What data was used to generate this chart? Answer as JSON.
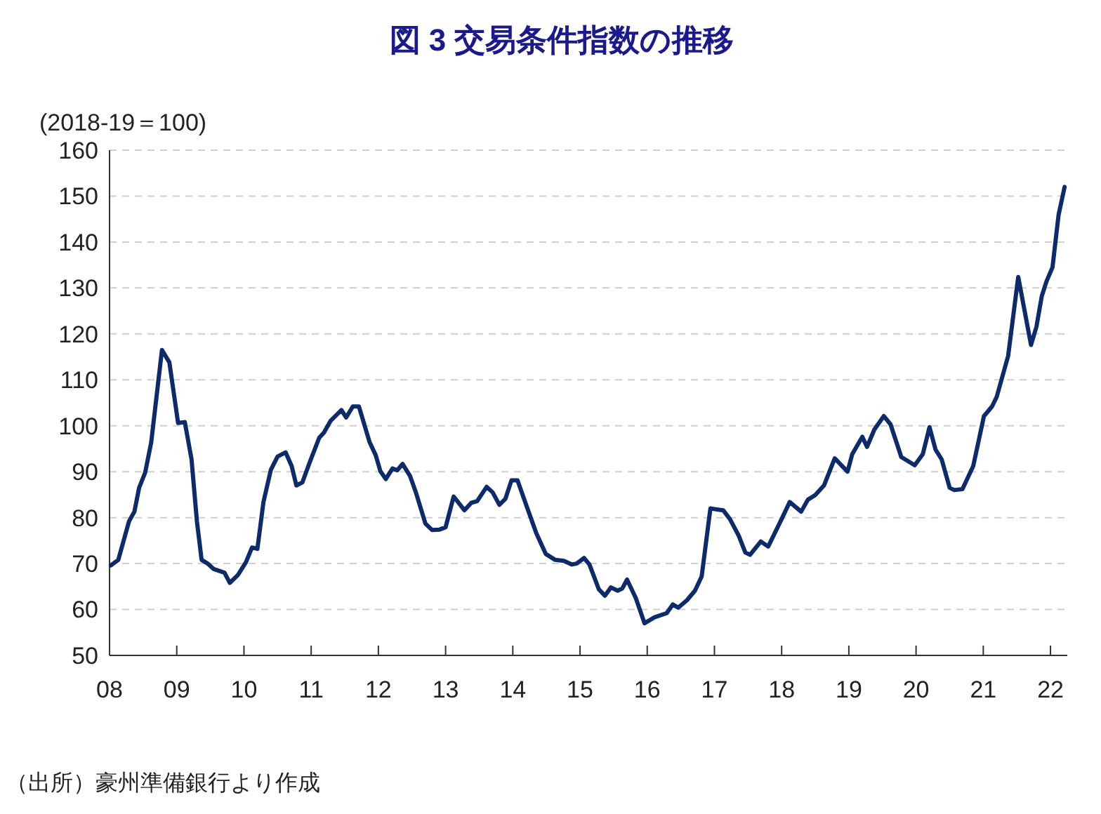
{
  "chart_data": {
    "type": "line",
    "title": "図 3  交易条件指数の推移",
    "ylabel": "(2018-19＝100)",
    "annotations": [
      "（出所）豪州準備銀行より作成"
    ],
    "xlim": [
      2008,
      2022.25
    ],
    "xticks": [
      {
        "value": 2008,
        "label": "08"
      },
      {
        "value": 2009,
        "label": "09"
      },
      {
        "value": 2010,
        "label": "10"
      },
      {
        "value": 2011,
        "label": "11"
      },
      {
        "value": 2012,
        "label": "12"
      },
      {
        "value": 2013,
        "label": "13"
      },
      {
        "value": 2014,
        "label": "14"
      },
      {
        "value": 2015,
        "label": "15"
      },
      {
        "value": 2016,
        "label": "16"
      },
      {
        "value": 2017,
        "label": "17"
      },
      {
        "value": 2018,
        "label": "18"
      },
      {
        "value": 2019,
        "label": "19"
      },
      {
        "value": 2020,
        "label": "20"
      },
      {
        "value": 2021,
        "label": "21"
      },
      {
        "value": 2022,
        "label": "22"
      }
    ],
    "ylim": [
      50,
      160
    ],
    "yticks": [
      50,
      60,
      70,
      80,
      90,
      100,
      110,
      120,
      130,
      140,
      150,
      160
    ],
    "grid": "y",
    "marker": "none",
    "line_style": "solid",
    "series": [
      {
        "color": "#0d2a6b",
        "x": [
          2008.02,
          2008.13,
          2008.29,
          2008.37,
          2008.44,
          2008.53,
          2008.62,
          2008.78,
          2008.89,
          2009.02,
          2009.12,
          2009.22,
          2009.3,
          2009.37,
          2009.46,
          2009.55,
          2009.71,
          2009.79,
          2009.91,
          2010.03,
          2010.12,
          2010.2,
          2010.29,
          2010.4,
          2010.5,
          2010.62,
          2010.71,
          2010.78,
          2010.87,
          2010.97,
          2011.12,
          2011.19,
          2011.29,
          2011.45,
          2011.52,
          2011.62,
          2011.71,
          2011.87,
          2011.96,
          2012.03,
          2012.11,
          2012.21,
          2012.28,
          2012.36,
          2012.47,
          2012.56,
          2012.7,
          2012.8,
          2012.91,
          2013.0,
          2013.12,
          2013.28,
          2013.38,
          2013.47,
          2013.61,
          2013.7,
          2013.8,
          2013.89,
          2013.98,
          2014.07,
          2014.21,
          2014.35,
          2014.49,
          2014.63,
          2014.76,
          2014.88,
          2014.95,
          2015.06,
          2015.14,
          2015.28,
          2015.37,
          2015.46,
          2015.56,
          2015.63,
          2015.7,
          2015.83,
          2015.96,
          2016.11,
          2016.29,
          2016.38,
          2016.46,
          2016.59,
          2016.71,
          2016.81,
          2016.94,
          2017.13,
          2017.23,
          2017.36,
          2017.46,
          2017.53,
          2017.69,
          2017.8,
          2018.0,
          2018.12,
          2018.29,
          2018.39,
          2018.5,
          2018.63,
          2018.79,
          2018.98,
          2019.05,
          2019.2,
          2019.27,
          2019.38,
          2019.52,
          2019.62,
          2019.78,
          2019.98,
          2020.1,
          2020.2,
          2020.29,
          2020.38,
          2020.5,
          2020.57,
          2020.69,
          2020.85,
          2021.01,
          2021.13,
          2021.2,
          2021.37,
          2021.52,
          2021.71,
          2021.79,
          2021.87,
          2021.94,
          2022.03,
          2022.12,
          2022.21
        ],
        "values": [
          69.6,
          70.8,
          79.2,
          81.3,
          86.5,
          89.8,
          96.4,
          116.5,
          113.8,
          100.6,
          100.8,
          92.7,
          79.2,
          70.8,
          70.0,
          68.8,
          68.0,
          65.8,
          67.5,
          70.3,
          73.5,
          73.2,
          83.4,
          90.4,
          93.3,
          94.2,
          91.2,
          87.0,
          87.7,
          91.7,
          97.4,
          98.5,
          101.1,
          103.4,
          101.8,
          104.2,
          104.2,
          96.4,
          93.6,
          90.1,
          88.4,
          90.7,
          90.3,
          91.7,
          89.1,
          85.4,
          78.7,
          77.3,
          77.4,
          77.9,
          84.6,
          81.6,
          83.2,
          83.6,
          86.7,
          85.5,
          82.8,
          84.1,
          88.1,
          88.1,
          82.3,
          76.6,
          72.1,
          70.8,
          70.6,
          69.8,
          70.0,
          71.2,
          69.8,
          64.4,
          63.0,
          64.8,
          64.1,
          64.6,
          66.5,
          62.5,
          57.0,
          58.3,
          59.2,
          61.1,
          60.4,
          62.0,
          64.1,
          67.2,
          82.0,
          81.6,
          79.7,
          76.1,
          72.4,
          71.9,
          74.8,
          73.7,
          79.7,
          83.4,
          81.3,
          83.9,
          84.9,
          87.0,
          92.9,
          90.0,
          93.8,
          97.6,
          95.4,
          99.2,
          102.1,
          100.3,
          93.2,
          91.4,
          93.8,
          99.7,
          94.8,
          92.7,
          86.5,
          86.0,
          86.2,
          91.2,
          102.1,
          104.2,
          106.3,
          115.2,
          132.4,
          117.6,
          121.5,
          128.2,
          131.4,
          134.5,
          145.9,
          152.0
        ]
      }
    ]
  }
}
